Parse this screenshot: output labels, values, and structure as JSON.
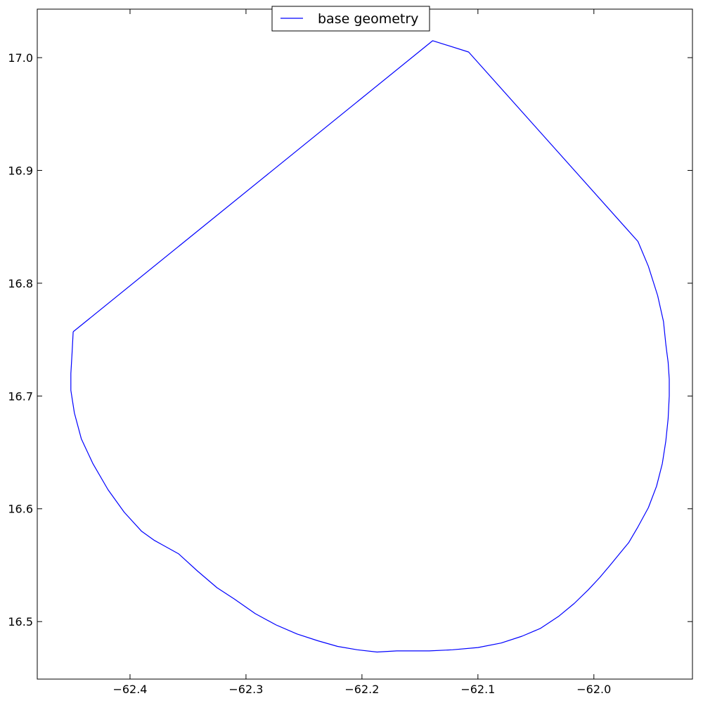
{
  "chart_data": {
    "type": "line",
    "title": "",
    "xlabel": "",
    "ylabel": "",
    "xlim": [
      -62.48,
      -61.915
    ],
    "ylim": [
      16.449,
      17.043
    ],
    "grid": false,
    "legend_position": "top-center",
    "x_ticks": [
      {
        "value": -62.4,
        "label": "−62.4"
      },
      {
        "value": -62.3,
        "label": "−62.3"
      },
      {
        "value": -62.2,
        "label": "−62.2"
      },
      {
        "value": -62.1,
        "label": "−62.1"
      },
      {
        "value": -62.0,
        "label": "−62.0"
      }
    ],
    "y_ticks": [
      {
        "value": 16.5,
        "label": "16.5"
      },
      {
        "value": 16.6,
        "label": "16.6"
      },
      {
        "value": 16.7,
        "label": "16.7"
      },
      {
        "value": 16.8,
        "label": "16.8"
      },
      {
        "value": 16.9,
        "label": "16.9"
      },
      {
        "value": 17.0,
        "label": "17.0"
      }
    ],
    "series": [
      {
        "name": "base geometry",
        "color": "#0000ff",
        "x": [
          -62.449,
          -62.139,
          -62.108,
          -61.962,
          -61.953,
          -61.945,
          -61.94,
          -61.938,
          -61.937,
          -61.936,
          -61.935,
          -61.935,
          -61.936,
          -61.938,
          -61.941,
          -61.946,
          -61.953,
          -61.962,
          -61.97,
          -61.978,
          -61.986,
          -61.995,
          -62.005,
          -62.017,
          -62.03,
          -62.046,
          -62.062,
          -62.08,
          -62.1,
          -62.122,
          -62.142,
          -62.17,
          -62.187,
          -62.204,
          -62.221,
          -62.238,
          -62.256,
          -62.274,
          -62.292,
          -62.31,
          -62.325,
          -62.342,
          -62.358,
          -62.372,
          -62.379,
          -62.39,
          -62.405,
          -62.419,
          -62.432,
          -62.442,
          -62.448,
          -62.451,
          -62.451,
          -62.45,
          -62.449
        ],
        "y": [
          16.757,
          17.015,
          17.005,
          16.837,
          16.815,
          16.789,
          16.766,
          16.746,
          16.738,
          16.73,
          16.715,
          16.7,
          16.68,
          16.66,
          16.64,
          16.62,
          16.601,
          16.584,
          16.57,
          16.56,
          16.55,
          16.539,
          16.528,
          16.516,
          16.505,
          16.494,
          16.487,
          16.481,
          16.477,
          16.475,
          16.474,
          16.474,
          16.473,
          16.475,
          16.478,
          16.483,
          16.489,
          16.497,
          16.507,
          16.52,
          16.53,
          16.545,
          16.56,
          16.568,
          16.572,
          16.58,
          16.597,
          16.617,
          16.64,
          16.662,
          16.685,
          16.705,
          16.72,
          16.738,
          16.757
        ]
      }
    ]
  }
}
